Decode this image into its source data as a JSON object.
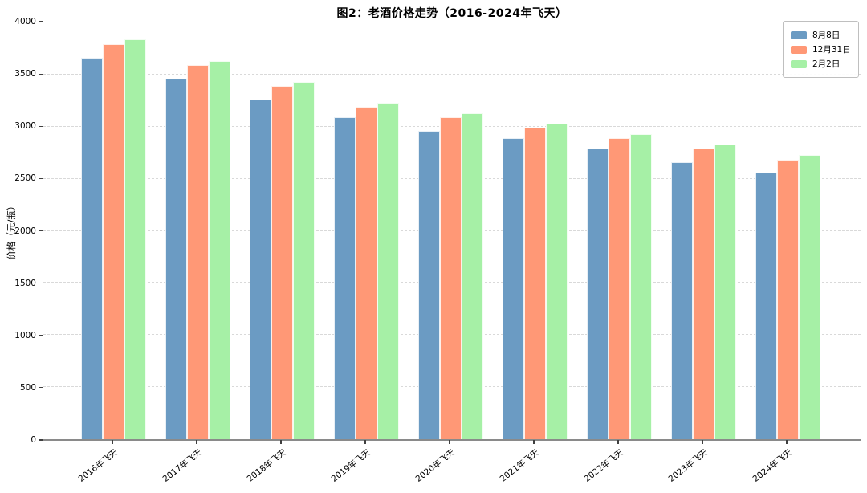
{
  "figure": {
    "title": "图2：老酒价格走势（2016-2024年飞天）"
  },
  "chart_data": {
    "type": "bar",
    "title": "图2：老酒价格走势（2016-2024年飞天）",
    "xlabel": "",
    "ylabel": "价格（元/瓶）",
    "categories": [
      "2016年飞天",
      "2017年飞天",
      "2018年飞天",
      "2019年飞天",
      "2020年飞天",
      "2021年飞天",
      "2022年飞天",
      "2023年飞天",
      "2024年飞天"
    ],
    "series": [
      {
        "name": "8月8日",
        "color": "#6b9bc3",
        "values": [
          3650,
          3450,
          3250,
          3080,
          2950,
          2880,
          2780,
          2650,
          2550
        ]
      },
      {
        "name": "12月31日",
        "color": "#ff9876",
        "values": [
          3780,
          3580,
          3380,
          3180,
          3080,
          2980,
          2880,
          2780,
          2670
        ]
      },
      {
        "name": "2月2日",
        "color": "#a6f0a6",
        "values": [
          3820,
          3620,
          3420,
          3220,
          3120,
          3020,
          2920,
          2820,
          2720
        ]
      }
    ],
    "ylim": [
      0,
      4000
    ],
    "yticks": [
      0,
      500,
      1000,
      1500,
      2000,
      2500,
      3000,
      3500,
      4000
    ],
    "grid": true,
    "grid_style": "dashed",
    "legend_position": "upper right",
    "bar_edge_color": "#ffffff",
    "axis_color": "#3f3f3f"
  }
}
